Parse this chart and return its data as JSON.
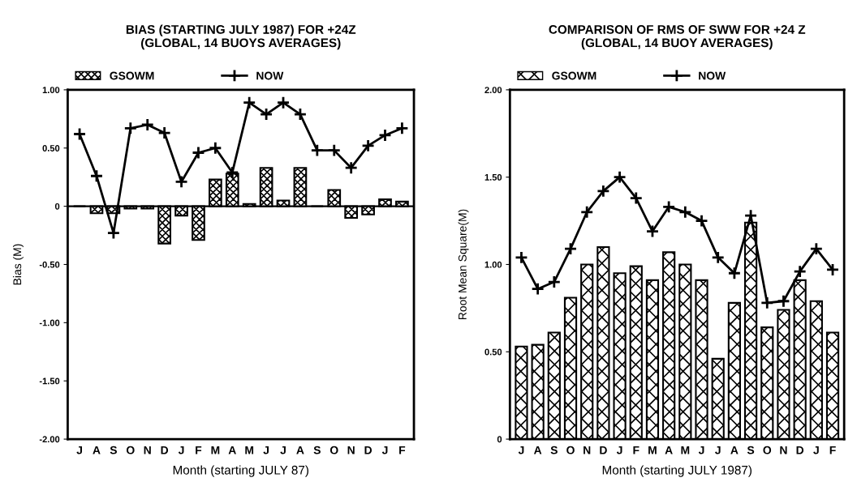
{
  "chart_data": [
    {
      "type": "bar",
      "title": "BIAS (STARTING JULY 1987) FOR +24Z\n(GLOBAL, 14 BUOYS AVERAGES)",
      "xlabel": "Month (starting JULY 87)",
      "ylabel": "Bias (M)",
      "categories": [
        "J",
        "A",
        "S",
        "O",
        "N",
        "D",
        "J",
        "F",
        "M",
        "A",
        "M",
        "J",
        "J",
        "A",
        "S",
        "O",
        "N",
        "D",
        "J",
        "F"
      ],
      "series": [
        {
          "name": "GSOWM",
          "color": "#000000",
          "values": [
            0,
            -0.06,
            -0.06,
            -0.02,
            -0.02,
            -0.32,
            -0.08,
            -0.29,
            0.23,
            0.28,
            0.02,
            0.33,
            0.05,
            0.33,
            0,
            0.14,
            -0.1,
            -0.07,
            0.06,
            0.04
          ]
        },
        {
          "name": "NOW",
          "type": "line",
          "color": "#000000",
          "marker": "cross",
          "line_style": "solid",
          "values": [
            0.62,
            0.26,
            -0.23,
            0.67,
            0.7,
            0.63,
            0.21,
            0.46,
            0.5,
            0.29,
            0.89,
            0.79,
            0.89,
            0.79,
            0.48,
            0.48,
            0.33,
            0.52,
            0.61,
            0.67
          ]
        }
      ],
      "ylim": [
        -2,
        1
      ],
      "yticks": [
        {
          "value": -2,
          "label": "-2.00"
        },
        {
          "value": -1.5,
          "label": "-1.50"
        },
        {
          "value": -1,
          "label": "-1.00"
        },
        {
          "value": -0.5,
          "label": "-0.50"
        },
        0,
        {
          "value": 0.5,
          "label": "0.50"
        },
        {
          "value": 1,
          "label": "1.00"
        }
      ],
      "ref_lines": [
        {
          "axis": "y",
          "value": 0,
          "color": "#000000"
        }
      ],
      "grid": false,
      "legend": "top"
    },
    {
      "type": "bar",
      "title": "COMPARISON OF RMS OF SWW FOR +24 Z\n(GLOBAL, 14 BUOY AVERAGES)",
      "xlabel": "Month (starting JULY 1987)",
      "ylabel": "Root Mean Square(M)",
      "categories": [
        "J",
        "A",
        "S",
        "O",
        "N",
        "D",
        "J",
        "F",
        "M",
        "A",
        "M",
        "J",
        "J",
        "A",
        "S",
        "O",
        "N",
        "D",
        "J",
        "F"
      ],
      "series": [
        {
          "name": "GSOWM",
          "color": "#000000",
          "values": [
            0.53,
            0.54,
            0.61,
            0.81,
            1.0,
            1.1,
            0.95,
            0.99,
            0.91,
            1.07,
            1.0,
            0.91,
            0.46,
            0.78,
            1.24,
            0.64,
            0.74,
            0.91,
            0.79,
            0.61
          ]
        },
        {
          "name": "NOW",
          "type": "line",
          "color": "#000000",
          "marker": "cross",
          "line_style": "solid",
          "values": [
            1.04,
            0.86,
            0.9,
            1.09,
            1.3,
            1.42,
            1.5,
            1.38,
            1.19,
            1.33,
            1.3,
            1.25,
            1.04,
            0.95,
            1.28,
            0.78,
            0.79,
            0.96,
            1.09,
            0.97
          ]
        }
      ],
      "ylim": [
        0,
        2
      ],
      "yticks": [
        0,
        {
          "value": 0.5,
          "label": "0.50"
        },
        {
          "value": 1,
          "label": "1.00"
        },
        {
          "value": 1.5,
          "label": "1.50"
        },
        {
          "value": 2,
          "label": "2.00"
        }
      ],
      "grid": false,
      "legend": "top"
    }
  ]
}
